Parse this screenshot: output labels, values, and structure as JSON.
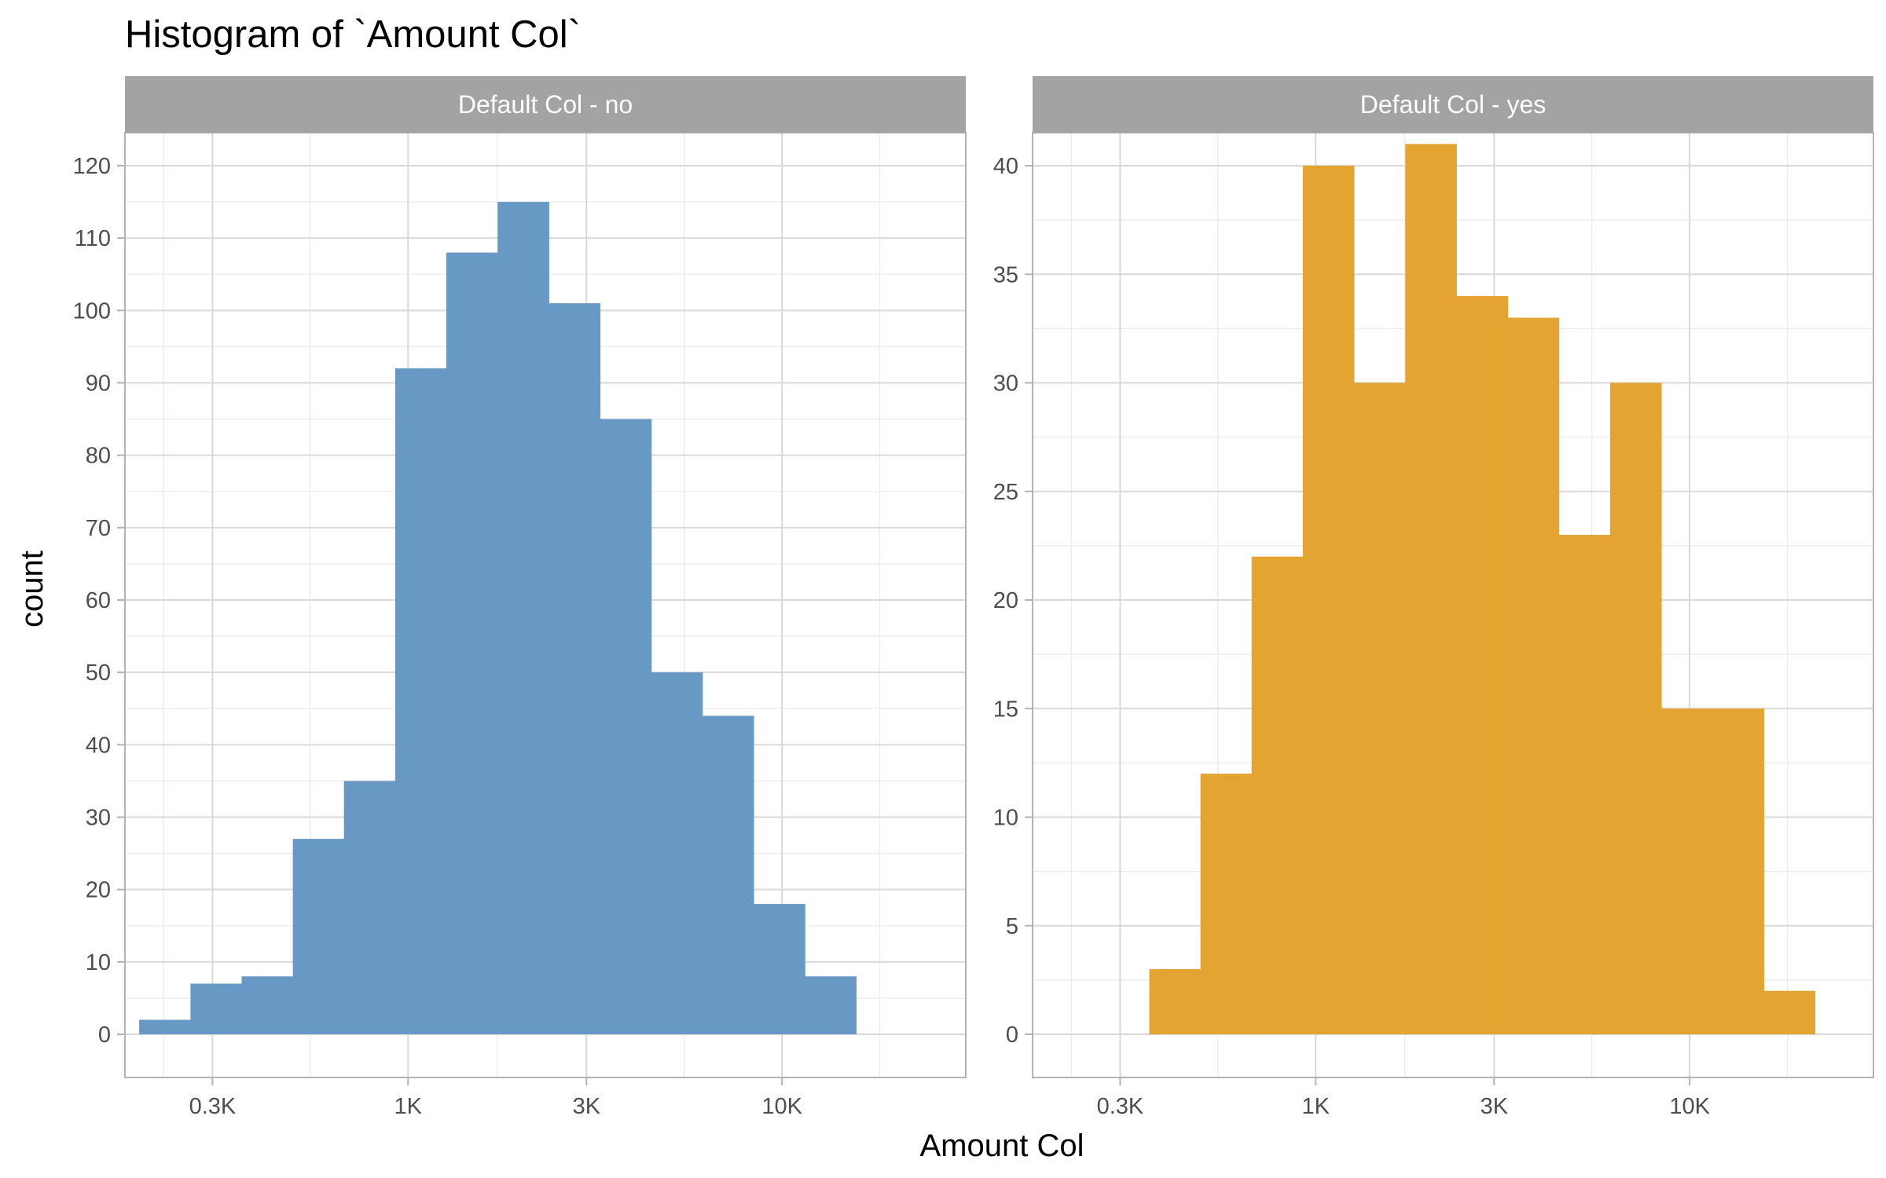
{
  "chart_data": {
    "type": "bar",
    "title": "Histogram of `Amount Col`",
    "xlabel": "Amount Col",
    "ylabel": "count",
    "x_scale": "log10",
    "x_ticks": [
      {
        "value": 300,
        "label": "0.3K"
      },
      {
        "value": 1000,
        "label": "1K"
      },
      {
        "value": 3000,
        "label": "3K"
      },
      {
        "value": 10000,
        "label": "10K"
      }
    ],
    "grid": true,
    "legend": "none",
    "panels": [
      {
        "strip_label": "Default Col - no",
        "color": "#6899c5",
        "ylim": [
          0,
          120
        ],
        "y_ticks": [
          0,
          10,
          20,
          30,
          40,
          50,
          60,
          70,
          80,
          90,
          100,
          110,
          120
        ],
        "bins": [
          {
            "x_start": 191,
            "x_end": 262,
            "count": 2
          },
          {
            "x_start": 262,
            "x_end": 359,
            "count": 7
          },
          {
            "x_start": 359,
            "x_end": 492,
            "count": 8
          },
          {
            "x_start": 492,
            "x_end": 674,
            "count": 27
          },
          {
            "x_start": 674,
            "x_end": 924,
            "count": 35
          },
          {
            "x_start": 924,
            "x_end": 1266,
            "count": 92
          },
          {
            "x_start": 1266,
            "x_end": 1736,
            "count": 108
          },
          {
            "x_start": 1736,
            "x_end": 2379,
            "count": 115
          },
          {
            "x_start": 2379,
            "x_end": 3261,
            "count": 101
          },
          {
            "x_start": 3261,
            "x_end": 4470,
            "count": 85
          },
          {
            "x_start": 4470,
            "x_end": 6126,
            "count": 50
          },
          {
            "x_start": 6126,
            "x_end": 8398,
            "count": 44
          },
          {
            "x_start": 8398,
            "x_end": 11511,
            "count": 18
          },
          {
            "x_start": 11511,
            "x_end": 15779,
            "count": 8
          }
        ]
      },
      {
        "strip_label": "Default Col - yes",
        "color": "#e4a431",
        "ylim": [
          0,
          40
        ],
        "y_ticks": [
          0,
          5,
          10,
          15,
          20,
          25,
          30,
          35,
          40
        ],
        "bins": [
          {
            "x_start": 359,
            "x_end": 492,
            "count": 3
          },
          {
            "x_start": 492,
            "x_end": 674,
            "count": 12
          },
          {
            "x_start": 674,
            "x_end": 924,
            "count": 22
          },
          {
            "x_start": 924,
            "x_end": 1266,
            "count": 40
          },
          {
            "x_start": 1266,
            "x_end": 1736,
            "count": 30
          },
          {
            "x_start": 1736,
            "x_end": 2379,
            "count": 41
          },
          {
            "x_start": 2379,
            "x_end": 3261,
            "count": 34
          },
          {
            "x_start": 3261,
            "x_end": 4470,
            "count": 33
          },
          {
            "x_start": 4470,
            "x_end": 6126,
            "count": 23
          },
          {
            "x_start": 6126,
            "x_end": 8398,
            "count": 30
          },
          {
            "x_start": 8398,
            "x_end": 11511,
            "count": 15
          },
          {
            "x_start": 11511,
            "x_end": 15779,
            "count": 15
          },
          {
            "x_start": 15779,
            "x_end": 21629,
            "count": 2
          }
        ]
      }
    ]
  }
}
